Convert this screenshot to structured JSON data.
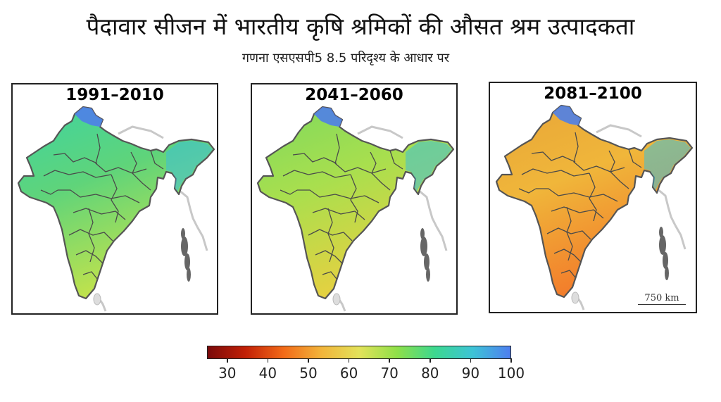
{
  "title": "पैदावार सीजन में भारतीय कृषि श्रमिकों की औसत श्रम उत्पादकता",
  "subtitle": "गणना एसएसपी5 8.5 परिदृश्य के आधार पर",
  "panels": [
    {
      "label": "1991–2010",
      "fill": "#5fd47a",
      "south": "#c5e34a",
      "hot": "#3fd3a0"
    },
    {
      "label": "2041–2060",
      "fill": "#a8df4e",
      "south": "#e8d040",
      "hot": "#7fd95e"
    },
    {
      "label": "2081–2100",
      "fill": "#f0b63a",
      "south": "#f27a2a",
      "hot": "#e8a638"
    }
  ],
  "scale_bar": "750 km",
  "legend": {
    "ticks": [
      "30",
      "40",
      "50",
      "60",
      "70",
      "80",
      "90",
      "100"
    ],
    "min": 25,
    "max": 100,
    "colors": [
      "#7a0a0a",
      "#c22006",
      "#f26a18",
      "#f2b43a",
      "#e3e25a",
      "#8fe049",
      "#3cd88f",
      "#3dc4d6",
      "#4e7ef0"
    ]
  }
}
